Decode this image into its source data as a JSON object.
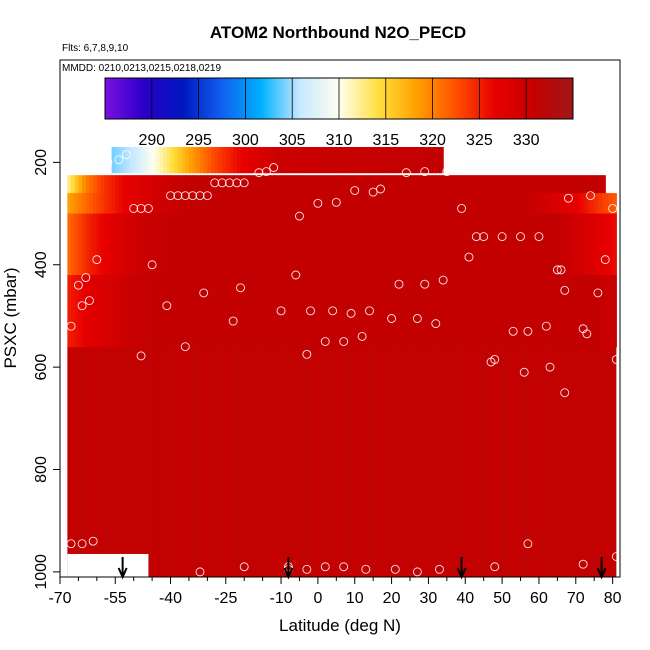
{
  "chart_data": {
    "type": "heatmap",
    "title": "ATOM2 Northbound N2O_PECD",
    "subtitle_flights": "Flts: 6,7,8,9,10",
    "subtitle_dates": "MMDD: 0210,0213,0215,0218,0219",
    "xlabel": "Latitude (deg N)",
    "ylabel": "PSXC (mbar)",
    "xlim": [
      -70,
      82
    ],
    "ylim": [
      1010,
      0
    ],
    "x_ticks": [
      -70,
      -55,
      -40,
      -25,
      -10,
      0,
      10,
      20,
      30,
      40,
      50,
      60,
      70,
      80
    ],
    "x_minor_ticks": [
      -65,
      -60,
      -50,
      -45,
      -35,
      -30,
      -20,
      -15,
      -5,
      5,
      15,
      25,
      35,
      45,
      55,
      65,
      75
    ],
    "y_ticks": [
      200,
      400,
      600,
      800,
      1000
    ],
    "colorbar": {
      "min": 285,
      "max": 335,
      "ticks": [
        290,
        295,
        300,
        305,
        310,
        315,
        320,
        325,
        330
      ],
      "colors": [
        "#7a10e0",
        "#2a00c8",
        "#0018c0",
        "#1060f0",
        "#00b0ff",
        "#c8e8ff",
        "#fffff0",
        "#ffe040",
        "#ffa000",
        "#ff5000",
        "#e80000",
        "#c40000",
        "#a01818"
      ]
    },
    "vertical_profile_arrows_lat": [
      -53,
      -8,
      39,
      77
    ],
    "field": {
      "x_range": [
        -68,
        81
      ],
      "default_value": 331,
      "bands": [
        {
          "p": [
            170,
            220
          ],
          "x": [
            -56,
            34
          ],
          "values": [
            [
              -56,
              304
            ],
            [
              -50,
              306
            ],
            [
              -42,
              312
            ],
            [
              -35,
              318
            ],
            [
              -28,
              323
            ],
            [
              -20,
              327
            ],
            [
              -10,
              330
            ],
            [
              34,
              331
            ]
          ]
        },
        {
          "p": [
            225,
            260
          ],
          "x": [
            -68,
            78
          ],
          "values": [
            [
              -68,
              312
            ],
            [
              -63,
              320
            ],
            [
              -58,
              324
            ],
            [
              -52,
              327
            ],
            [
              -45,
              329
            ],
            [
              -35,
              331
            ],
            [
              78,
              331
            ]
          ]
        },
        {
          "p": [
            260,
            300
          ],
          "x": [
            -68,
            81
          ],
          "values": [
            [
              -68,
              318
            ],
            [
              -60,
              323
            ],
            [
              -52,
              327
            ],
            [
              -45,
              329
            ],
            [
              -35,
              331
            ],
            [
              55,
              331
            ],
            [
              63,
              329
            ],
            [
              70,
              327
            ],
            [
              76,
              324
            ],
            [
              81,
              322
            ]
          ]
        },
        {
          "p": [
            300,
            420
          ],
          "x": [
            -68,
            81
          ],
          "values": [
            [
              -68,
              321
            ],
            [
              -62,
              325
            ],
            [
              -55,
              328
            ],
            [
              -48,
              330
            ],
            [
              -40,
              331
            ],
            [
              65,
              331
            ],
            [
              72,
              329
            ],
            [
              78,
              327
            ],
            [
              81,
              326
            ]
          ]
        },
        {
          "p": [
            420,
            560
          ],
          "x": [
            -68,
            81
          ],
          "values": [
            [
              -68,
              325
            ],
            [
              -60,
              328
            ],
            [
              -52,
              330
            ],
            [
              -45,
              331
            ],
            [
              75,
              331
            ],
            [
              81,
              330
            ]
          ]
        }
      ]
    },
    "sample_points": [
      {
        "lat": -57,
        "p": 200
      },
      {
        "lat": -54,
        "p": 195
      },
      {
        "lat": -52,
        "p": 185
      },
      {
        "lat": -40,
        "p": 265
      },
      {
        "lat": -38,
        "p": 265
      },
      {
        "lat": -36,
        "p": 265
      },
      {
        "lat": -34,
        "p": 265
      },
      {
        "lat": -32,
        "p": 265
      },
      {
        "lat": -30,
        "p": 265
      },
      {
        "lat": -28,
        "p": 240
      },
      {
        "lat": -26,
        "p": 240
      },
      {
        "lat": -24,
        "p": 240
      },
      {
        "lat": -22,
        "p": 240
      },
      {
        "lat": -20,
        "p": 240
      },
      {
        "lat": -16,
        "p": 220
      },
      {
        "lat": -14,
        "p": 218
      },
      {
        "lat": -12,
        "p": 210
      },
      {
        "lat": -50,
        "p": 290
      },
      {
        "lat": -48,
        "p": 290
      },
      {
        "lat": -46,
        "p": 290
      },
      {
        "lat": -5,
        "p": 305
      },
      {
        "lat": 0,
        "p": 280
      },
      {
        "lat": 5,
        "p": 278
      },
      {
        "lat": 10,
        "p": 255
      },
      {
        "lat": 15,
        "p": 258
      },
      {
        "lat": 17,
        "p": 252
      },
      {
        "lat": 24,
        "p": 220
      },
      {
        "lat": 29,
        "p": 218
      },
      {
        "lat": 35,
        "p": 218
      },
      {
        "lat": 38,
        "p": 210
      },
      {
        "lat": 39,
        "p": 290
      },
      {
        "lat": 41,
        "p": 385
      },
      {
        "lat": 43,
        "p": 345
      },
      {
        "lat": 45,
        "p": 345
      },
      {
        "lat": 50,
        "p": 345
      },
      {
        "lat": 55,
        "p": 345
      },
      {
        "lat": 60,
        "p": 345
      },
      {
        "lat": 68,
        "p": 270
      },
      {
        "lat": 74,
        "p": 265
      },
      {
        "lat": 80,
        "p": 290
      },
      {
        "lat": -65,
        "p": 440
      },
      {
        "lat": -64,
        "p": 480
      },
      {
        "lat": -63,
        "p": 425
      },
      {
        "lat": -62,
        "p": 470
      },
      {
        "lat": -60,
        "p": 390
      },
      {
        "lat": -67,
        "p": 520
      },
      {
        "lat": -45,
        "p": 400
      },
      {
        "lat": -41,
        "p": 480
      },
      {
        "lat": -31,
        "p": 455
      },
      {
        "lat": -23,
        "p": 510
      },
      {
        "lat": -21,
        "p": 445
      },
      {
        "lat": -10,
        "p": 490
      },
      {
        "lat": -6,
        "p": 420
      },
      {
        "lat": -3,
        "p": 575
      },
      {
        "lat": -2,
        "p": 490
      },
      {
        "lat": 2,
        "p": 550
      },
      {
        "lat": 4,
        "p": 490
      },
      {
        "lat": 7,
        "p": 550
      },
      {
        "lat": 9,
        "p": 495
      },
      {
        "lat": 12,
        "p": 540
      },
      {
        "lat": 14,
        "p": 490
      },
      {
        "lat": 20,
        "p": 505
      },
      {
        "lat": 22,
        "p": 438
      },
      {
        "lat": 27,
        "p": 505
      },
      {
        "lat": 29,
        "p": 438
      },
      {
        "lat": 32,
        "p": 515
      },
      {
        "lat": 34,
        "p": 430
      },
      {
        "lat": 47,
        "p": 590
      },
      {
        "lat": 48,
        "p": 585
      },
      {
        "lat": 53,
        "p": 530
      },
      {
        "lat": 56,
        "p": 610
      },
      {
        "lat": 57,
        "p": 530
      },
      {
        "lat": 62,
        "p": 520
      },
      {
        "lat": 63,
        "p": 600
      },
      {
        "lat": 65,
        "p": 410
      },
      {
        "lat": 66,
        "p": 410
      },
      {
        "lat": 67,
        "p": 450
      },
      {
        "lat": 67,
        "p": 650
      },
      {
        "lat": 72,
        "p": 525
      },
      {
        "lat": 73,
        "p": 535
      },
      {
        "lat": 76,
        "p": 455
      },
      {
        "lat": 78,
        "p": 390
      },
      {
        "lat": 81,
        "p": 585
      },
      {
        "lat": -36,
        "p": 560
      },
      {
        "lat": -48,
        "p": 578
      },
      {
        "lat": -67,
        "p": 945
      },
      {
        "lat": -64,
        "p": 945
      },
      {
        "lat": -61,
        "p": 940
      },
      {
        "lat": -48,
        "p": 1000
      },
      {
        "lat": -32,
        "p": 1000
      },
      {
        "lat": -20,
        "p": 990
      },
      {
        "lat": -8,
        "p": 995
      },
      {
        "lat": -8,
        "p": 990
      },
      {
        "lat": -3,
        "p": 995
      },
      {
        "lat": 2,
        "p": 990
      },
      {
        "lat": 7,
        "p": 990
      },
      {
        "lat": 13,
        "p": 995
      },
      {
        "lat": 21,
        "p": 995
      },
      {
        "lat": 27,
        "p": 1000
      },
      {
        "lat": 33,
        "p": 995
      },
      {
        "lat": 48,
        "p": 990
      },
      {
        "lat": 57,
        "p": 945
      },
      {
        "lat": 72,
        "p": 985
      },
      {
        "lat": 81,
        "p": 970
      }
    ]
  }
}
